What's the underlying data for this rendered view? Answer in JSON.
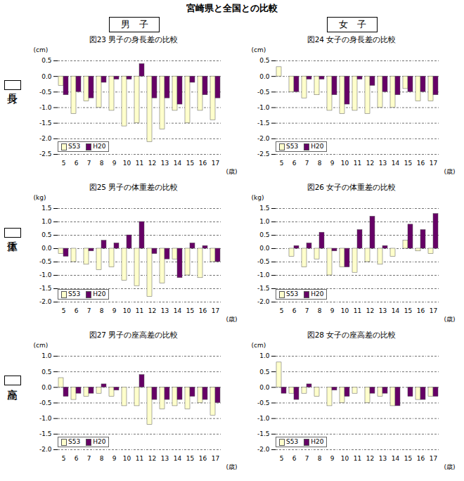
{
  "title": "宮崎県と全国との比較",
  "column_headers": [
    "男　子",
    "女　子"
  ],
  "row_labels": [
    "身長",
    "体重",
    "座高"
  ],
  "chart_data": [
    {
      "type": "bar",
      "title": "図23 男子の身長差の比較",
      "y_label": "(cm)",
      "x_label": "(歳)",
      "categories": [
        5,
        6,
        7,
        8,
        9,
        10,
        11,
        12,
        13,
        14,
        15,
        16,
        17
      ],
      "series": [
        {
          "name": "S53",
          "color": "#ffffcc",
          "values": [
            -0.3,
            -1.2,
            -0.8,
            -1.0,
            -1.1,
            -1.6,
            -1.5,
            -2.1,
            -1.7,
            -1.1,
            -1.5,
            -1.1,
            -1.4
          ]
        },
        {
          "name": "H20",
          "color": "#660066",
          "values": [
            -0.6,
            -0.5,
            -0.7,
            -0.2,
            -0.1,
            -0.1,
            0.4,
            -0.7,
            -0.7,
            -0.9,
            -0.2,
            -0.6,
            -0.7
          ]
        }
      ],
      "ylim": [
        -2.5,
        0.5
      ],
      "yticks": [
        -2.5,
        {
          "value": -2,
          "label": "-2.0"
        },
        -1.5,
        {
          "value": -1,
          "label": "-1.0"
        },
        -0.5,
        {
          "value": 0,
          "label": "0.0"
        },
        0.5
      ],
      "grid": true,
      "legend": "lower left"
    },
    {
      "type": "bar",
      "title": "図24 女子の身長差の比較",
      "y_label": "(cm)",
      "x_label": "(歳)",
      "categories": [
        5,
        6,
        7,
        8,
        9,
        10,
        11,
        12,
        13,
        14,
        15,
        16,
        17
      ],
      "series": [
        {
          "name": "S53",
          "color": "#ffffcc",
          "values": [
            0.3,
            -0.5,
            -0.7,
            -0.6,
            -1.1,
            -1.2,
            -1.1,
            -1.2,
            -1.0,
            -1.0,
            -0.4,
            -0.8,
            -0.8
          ]
        },
        {
          "name": "H20",
          "color": "#660066",
          "values": [
            0,
            -0.5,
            -0.1,
            -0.1,
            -0.6,
            -0.9,
            -0.1,
            -0.3,
            -0.5,
            -0.6,
            -0.5,
            -0.5,
            -0.6
          ]
        }
      ],
      "ylim": [
        -2.5,
        0.5
      ],
      "yticks": [
        -2.5,
        {
          "value": -2,
          "label": "-2.0"
        },
        -1.5,
        {
          "value": -1,
          "label": "-1.0"
        },
        -0.5,
        {
          "value": 0,
          "label": "0.0"
        },
        0.5
      ],
      "grid": true,
      "legend": "lower left"
    },
    {
      "type": "bar",
      "title": "図25 男子の体重差の比較",
      "y_label": "(kg)",
      "x_label": "(歳)",
      "categories": [
        5,
        6,
        7,
        8,
        9,
        10,
        11,
        12,
        13,
        14,
        15,
        16,
        17
      ],
      "series": [
        {
          "name": "S53",
          "color": "#ffffcc",
          "values": [
            -0.2,
            -0.5,
            -0.6,
            -0.8,
            -0.7,
            -1.2,
            -1.4,
            -1.8,
            -1.3,
            -0.4,
            -1.0,
            -1.1,
            -0.5
          ]
        },
        {
          "name": "H20",
          "color": "#660066",
          "values": [
            -0.3,
            0,
            -0.1,
            0.3,
            0.2,
            0.5,
            1.0,
            -0.2,
            -0.4,
            -1.1,
            0.2,
            0.1,
            -0.5
          ]
        }
      ],
      "ylim": [
        -2.0,
        1.5
      ],
      "yticks": [
        {
          "value": -2,
          "label": "-2.0"
        },
        -1.5,
        {
          "value": -1,
          "label": "-1.0"
        },
        -0.5,
        {
          "value": 0,
          "label": "0.0"
        },
        0.5,
        {
          "value": 1,
          "label": "1.0"
        },
        1.5
      ],
      "grid": true,
      "legend": "lower left"
    },
    {
      "type": "bar",
      "title": "図26 女子の体重差の比較",
      "y_label": "(kg)",
      "x_label": "(歳)",
      "categories": [
        5,
        6,
        7,
        8,
        9,
        10,
        11,
        12,
        13,
        14,
        15,
        16,
        17
      ],
      "series": [
        {
          "name": "S53",
          "color": "#ffffcc",
          "values": [
            0,
            -0.3,
            -0.7,
            -0.4,
            -1.0,
            -0.7,
            -0.9,
            -0.5,
            -0.6,
            -0.3,
            0.3,
            -0.1,
            -0.2
          ]
        },
        {
          "name": "H20",
          "color": "#660066",
          "values": [
            0,
            0.1,
            0.2,
            0.6,
            -0.1,
            -0.7,
            0.7,
            1.2,
            0.1,
            0,
            0.9,
            0.7,
            1.3
          ]
        }
      ],
      "ylim": [
        -2.0,
        1.5
      ],
      "yticks": [
        {
          "value": -2,
          "label": "-2.0"
        },
        -1.5,
        {
          "value": -1,
          "label": "-1.0"
        },
        -0.5,
        {
          "value": 0,
          "label": "0.0"
        },
        0.5,
        {
          "value": 1,
          "label": "1.0"
        },
        1.5
      ],
      "grid": true,
      "legend": "lower left"
    },
    {
      "type": "bar",
      "title": "図27 男子の座高差の比較",
      "y_label": "(cm)",
      "x_label": "(歳)",
      "categories": [
        5,
        6,
        7,
        8,
        9,
        10,
        11,
        12,
        13,
        14,
        15,
        16,
        17
      ],
      "series": [
        {
          "name": "S53",
          "color": "#ffffcc",
          "values": [
            0.3,
            -0.4,
            -0.3,
            -0.2,
            -0.3,
            -0.6,
            -0.6,
            -1.2,
            -0.7,
            -0.6,
            -0.7,
            -0.5,
            -0.9
          ]
        },
        {
          "name": "H20",
          "color": "#660066",
          "values": [
            -0.3,
            -0.2,
            -0.2,
            0.1,
            -0.1,
            0,
            0.4,
            -0.4,
            -0.4,
            -0.4,
            -0.3,
            -0.4,
            -0.5
          ]
        }
      ],
      "ylim": [
        -2.0,
        1.0
      ],
      "yticks": [
        {
          "value": -2,
          "label": "-2.0"
        },
        -1.5,
        {
          "value": -1,
          "label": "-1.0"
        },
        -0.5,
        {
          "value": 0,
          "label": "0.0"
        },
        0.5,
        {
          "value": 1,
          "label": "1.0"
        }
      ],
      "grid": true,
      "legend": "lower left"
    },
    {
      "type": "bar",
      "title": "図28 女子の座高差の比較",
      "y_label": "(cm)",
      "x_label": "(歳)",
      "categories": [
        5,
        6,
        7,
        8,
        9,
        10,
        11,
        12,
        13,
        14,
        15,
        16,
        17
      ],
      "series": [
        {
          "name": "S53",
          "color": "#ffffcc",
          "values": [
            0.8,
            -0.2,
            -0.2,
            -0.3,
            -0.6,
            -0.5,
            -0.2,
            -0.5,
            -0.3,
            -0.6,
            0,
            -0.4,
            -0.3
          ]
        },
        {
          "name": "H20",
          "color": "#660066",
          "values": [
            -0.2,
            -0.4,
            0.1,
            0,
            -0.1,
            -0.3,
            0,
            -0.2,
            -0.2,
            -0.6,
            -0.3,
            -0.4,
            -0.3
          ]
        }
      ],
      "ylim": [
        -2.0,
        1.0
      ],
      "yticks": [
        {
          "value": -2,
          "label": "-2.0"
        },
        -1.5,
        {
          "value": -1,
          "label": "-1.0"
        },
        -0.5,
        {
          "value": 0,
          "label": "0.0"
        },
        0.5,
        {
          "value": 1,
          "label": "1.0"
        }
      ],
      "grid": true,
      "legend": "lower left"
    }
  ]
}
